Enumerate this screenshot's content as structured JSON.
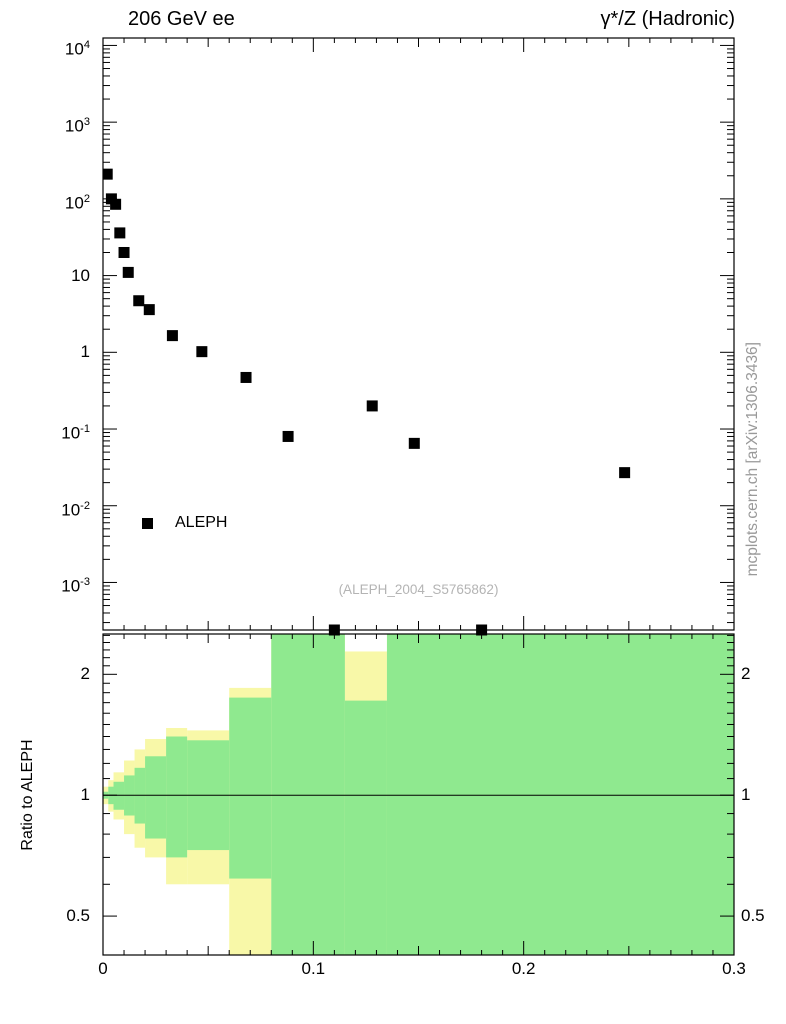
{
  "header": {
    "left_title": "206 GeV ee",
    "right_title": "γ*/Z (Hadronic)"
  },
  "side_note": "mcplots.cern.ch [arXiv:1306.3436]",
  "watermark": "(ALEPH_2004_S5765862)",
  "ratio_ylabel": "Ratio to ALEPH",
  "legend": {
    "label": "ALEPH"
  },
  "colors": {
    "marker": "#000000",
    "band_outer": "#f8f8a8",
    "band_inner": "#8fe98f",
    "frame": "#000000",
    "reference_line": "#000000"
  },
  "chart_data": [
    {
      "type": "scatter",
      "panel": "main",
      "title": "206 GeV ee",
      "xlim": [
        0,
        0.3
      ],
      "ylim": [
        0.00024,
        12500
      ],
      "yscale": "log",
      "grid": false,
      "legend_position": "inside-left-bottom",
      "xticks": [
        {
          "v": 0,
          "label": "0"
        },
        {
          "v": 0.1,
          "label": "0.1"
        },
        {
          "v": 0.2,
          "label": "0.2"
        },
        {
          "v": 0.3,
          "label": "0.3"
        }
      ],
      "yticks": [
        {
          "v": 10000,
          "label": "10",
          "sup": "4"
        },
        {
          "v": 1000,
          "label": "10",
          "sup": "3"
        },
        {
          "v": 100,
          "label": "10",
          "sup": "2"
        },
        {
          "v": 10,
          "label": "10"
        },
        {
          "v": 1,
          "label": "1"
        },
        {
          "v": 0.1,
          "label": "10",
          "sup": "-1"
        },
        {
          "v": 0.01,
          "label": "10",
          "sup": "-2"
        },
        {
          "v": 0.001,
          "label": "10",
          "sup": "-3"
        }
      ],
      "series": [
        {
          "name": "ALEPH",
          "marker": "black-square",
          "points": [
            [
              0.002,
              210
            ],
            [
              0.004,
              100
            ],
            [
              0.006,
              85
            ],
            [
              0.008,
              36
            ],
            [
              0.01,
              20
            ],
            [
              0.012,
              11
            ],
            [
              0.017,
              4.7
            ],
            [
              0.022,
              3.6
            ],
            [
              0.033,
              1.65
            ],
            [
              0.047,
              1.02
            ],
            [
              0.068,
              0.47
            ],
            [
              0.088,
              0.08
            ],
            [
              0.11,
              0.00024
            ],
            [
              0.128,
              0.2
            ],
            [
              0.148,
              0.065
            ],
            [
              0.18,
              0.00024
            ],
            [
              0.248,
              0.027
            ]
          ]
        }
      ]
    },
    {
      "type": "ratio-bands",
      "panel": "ratio",
      "ylabel": "Ratio to ALEPH",
      "xlim": [
        0,
        0.3
      ],
      "ylim": [
        0.4,
        2.52
      ],
      "yscale": "log",
      "reference_line": 1,
      "yticks": [
        {
          "v": 2,
          "label": "2"
        },
        {
          "v": 1,
          "label": "1"
        },
        {
          "v": 0.5,
          "label": "0.5"
        }
      ],
      "bands": [
        {
          "x0": 0.0,
          "x1": 0.0025,
          "outer": [
            0.95,
            1.05
          ],
          "inner": [
            0.98,
            1.02
          ]
        },
        {
          "x0": 0.0025,
          "x1": 0.005,
          "outer": [
            0.91,
            1.09
          ],
          "inner": [
            0.95,
            1.05
          ]
        },
        {
          "x0": 0.005,
          "x1": 0.01,
          "outer": [
            0.87,
            1.14
          ],
          "inner": [
            0.92,
            1.08
          ]
        },
        {
          "x0": 0.01,
          "x1": 0.015,
          "outer": [
            0.8,
            1.22
          ],
          "inner": [
            0.89,
            1.12
          ]
        },
        {
          "x0": 0.015,
          "x1": 0.02,
          "outer": [
            0.74,
            1.3
          ],
          "inner": [
            0.85,
            1.17
          ]
        },
        {
          "x0": 0.02,
          "x1": 0.03,
          "outer": [
            0.7,
            1.38
          ],
          "inner": [
            0.78,
            1.25
          ]
        },
        {
          "x0": 0.03,
          "x1": 0.04,
          "outer": [
            0.6,
            1.47
          ],
          "inner": [
            0.7,
            1.4
          ]
        },
        {
          "x0": 0.04,
          "x1": 0.06,
          "outer": [
            0.6,
            1.45
          ],
          "inner": [
            0.73,
            1.37
          ]
        },
        {
          "x0": 0.06,
          "x1": 0.08,
          "outer": [
            0.38,
            1.85
          ],
          "inner": [
            0.62,
            1.75
          ]
        },
        {
          "x0": 0.08,
          "x1": 0.115,
          "outer": [
            0.38,
            2.52
          ],
          "inner": [
            0.38,
            2.52
          ]
        },
        {
          "x0": 0.115,
          "x1": 0.135,
          "outer": [
            0.38,
            2.28
          ],
          "inner": [
            0.38,
            1.72
          ]
        },
        {
          "x0": 0.135,
          "x1": 0.3,
          "outer": [
            0.38,
            2.52
          ],
          "inner": [
            0.38,
            2.52
          ]
        }
      ]
    }
  ]
}
